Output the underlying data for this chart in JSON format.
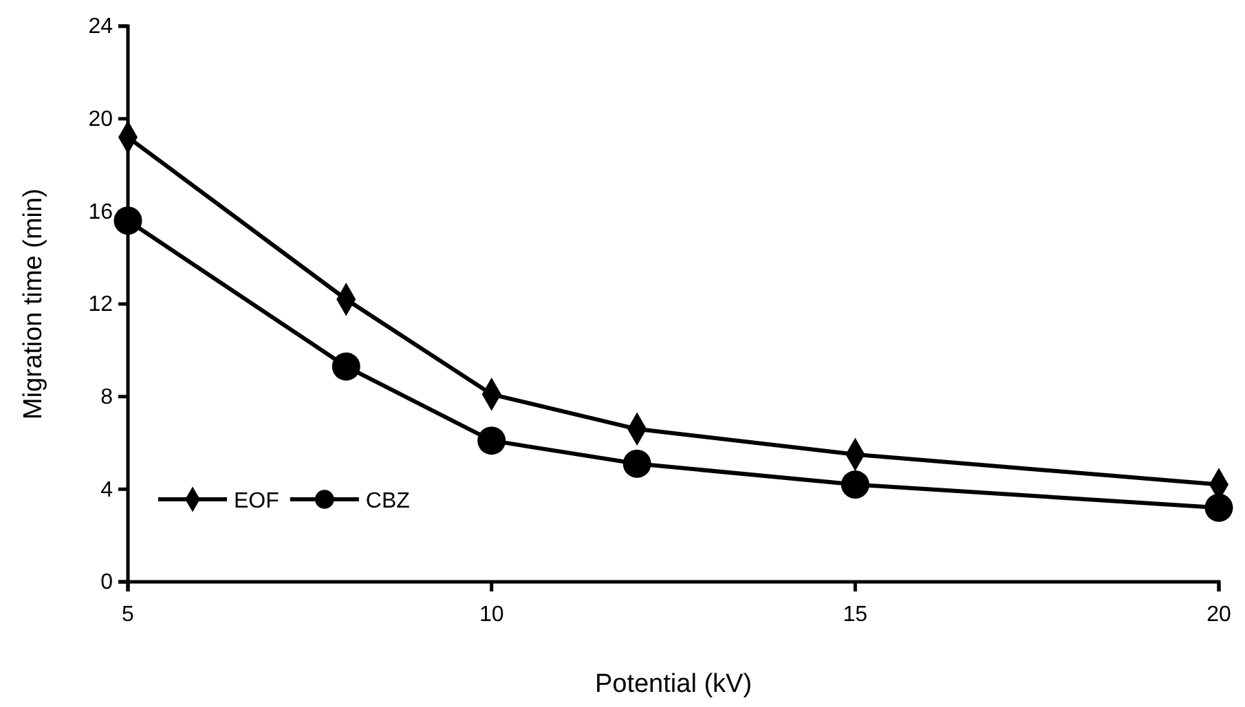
{
  "chart_data": {
    "type": "line",
    "xlabel": "Potential (kV)",
    "ylabel": "Migration time (min)",
    "x": [
      5,
      8,
      10,
      12,
      15,
      20
    ],
    "series": [
      {
        "name": "EOF",
        "color": "#000000",
        "marker": "diamond",
        "values": [
          19.2,
          12.2,
          8.1,
          6.6,
          5.5,
          4.2
        ]
      },
      {
        "name": "CBZ",
        "color": "#000000",
        "marker": "circle",
        "values": [
          15.6,
          9.3,
          6.1,
          5.1,
          4.2,
          3.2
        ]
      }
    ],
    "xlim": [
      5,
      20
    ],
    "xticks": [
      5,
      10,
      15,
      20
    ],
    "ylim": [
      0,
      24
    ],
    "yticks": [
      0,
      4,
      8,
      12,
      16,
      20,
      24
    ],
    "grid": false,
    "legend": "bottom left",
    "line_style": "solid"
  }
}
